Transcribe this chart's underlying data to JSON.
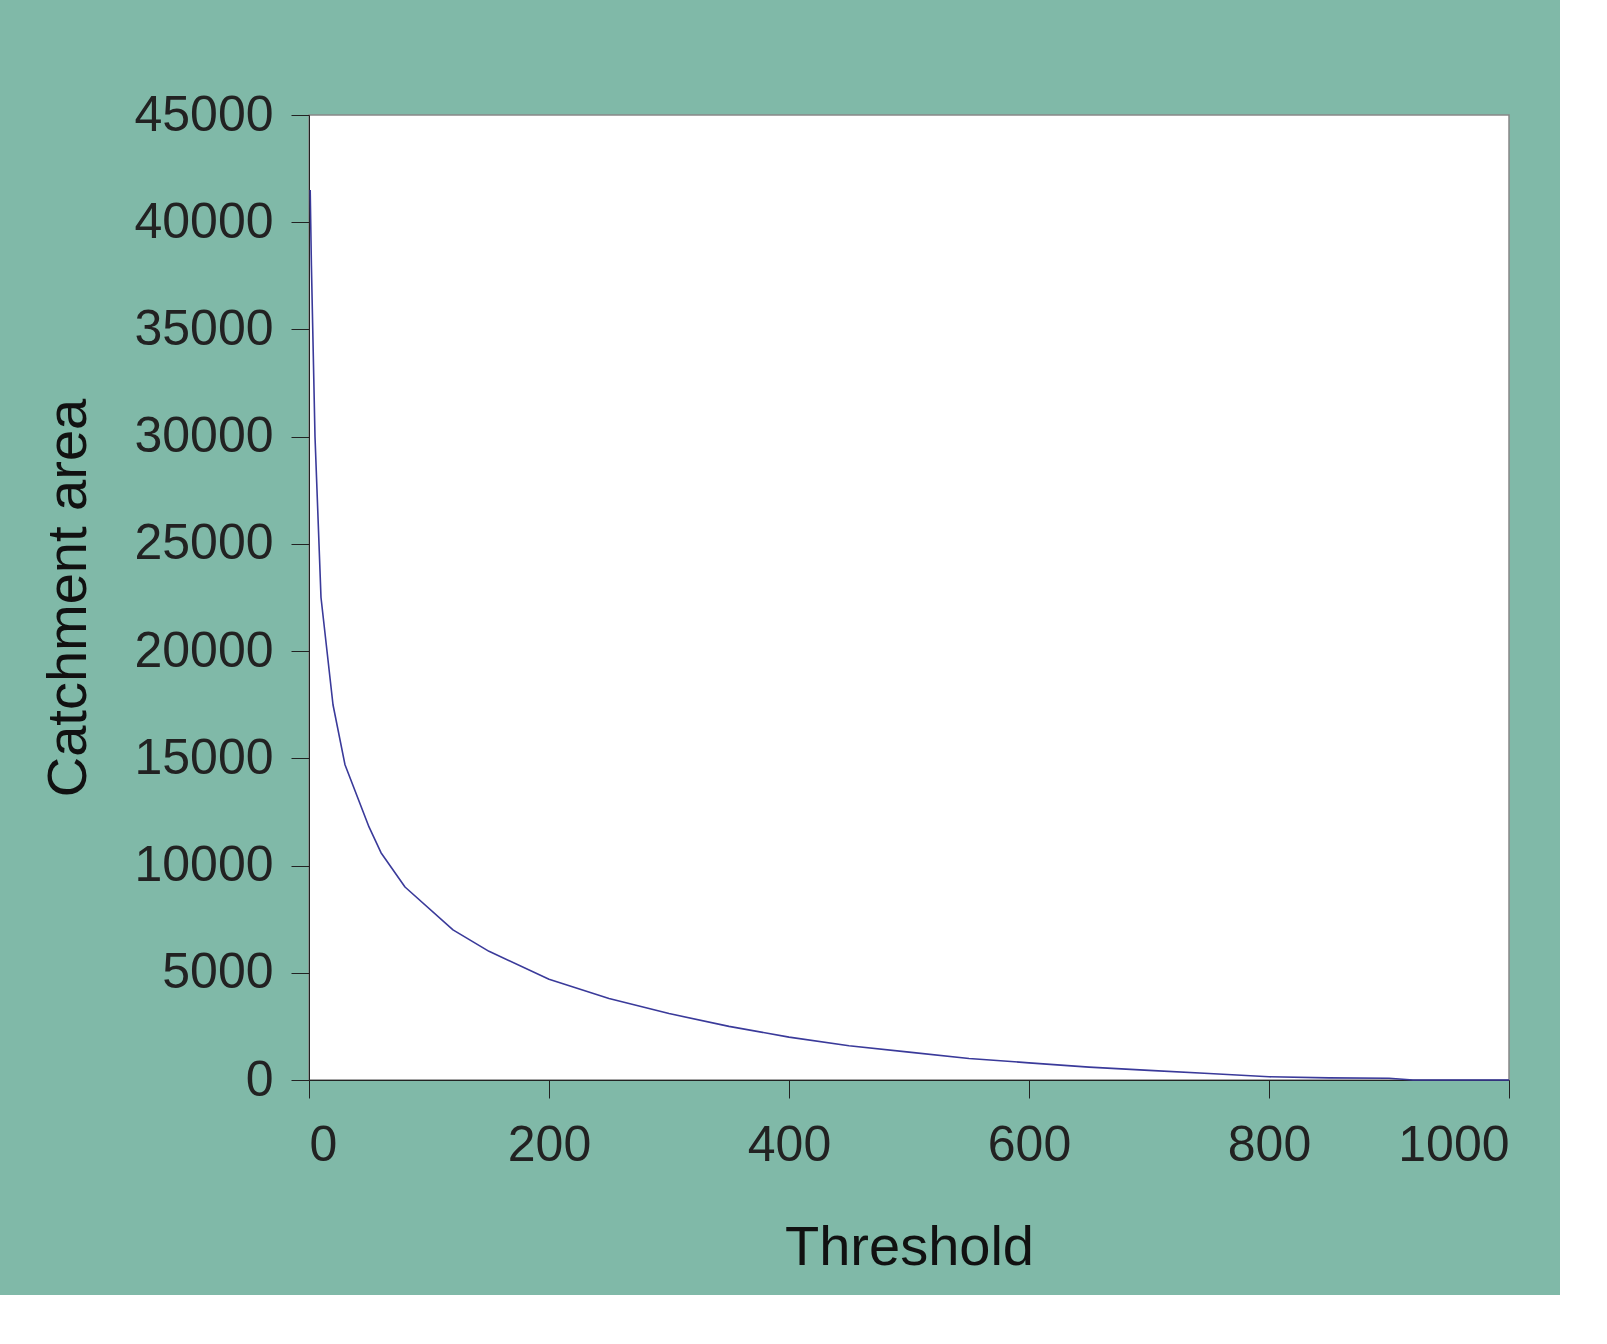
{
  "chart_data": {
    "type": "line",
    "xlabel": "Threshold",
    "ylabel": "Catchment area",
    "x": [
      1,
      2,
      5,
      10,
      20,
      30,
      50,
      60,
      80,
      120,
      150,
      200,
      250,
      300,
      350,
      400,
      450,
      500,
      550,
      600,
      650,
      700,
      750,
      800,
      850,
      900,
      920,
      1000
    ],
    "series": [
      {
        "color": "#3a3a9a",
        "values": [
          41500,
          38000,
          30000,
          22500,
          17500,
          14700,
          11800,
          10600,
          9000,
          7000,
          6000,
          4700,
          3800,
          3100,
          2500,
          2000,
          1600,
          1300,
          1000,
          800,
          600,
          450,
          300,
          150,
          100,
          80,
          0,
          0
        ]
      }
    ],
    "xlim": [
      0,
      1000
    ],
    "xticks": [
      0,
      200,
      400,
      600,
      800,
      1000
    ],
    "ylim": [
      0,
      45000
    ],
    "yticks": [
      0,
      5000,
      10000,
      15000,
      20000,
      25000,
      30000,
      35000,
      40000,
      45000
    ],
    "grid": false,
    "marker": "none",
    "line_style": "solid"
  }
}
